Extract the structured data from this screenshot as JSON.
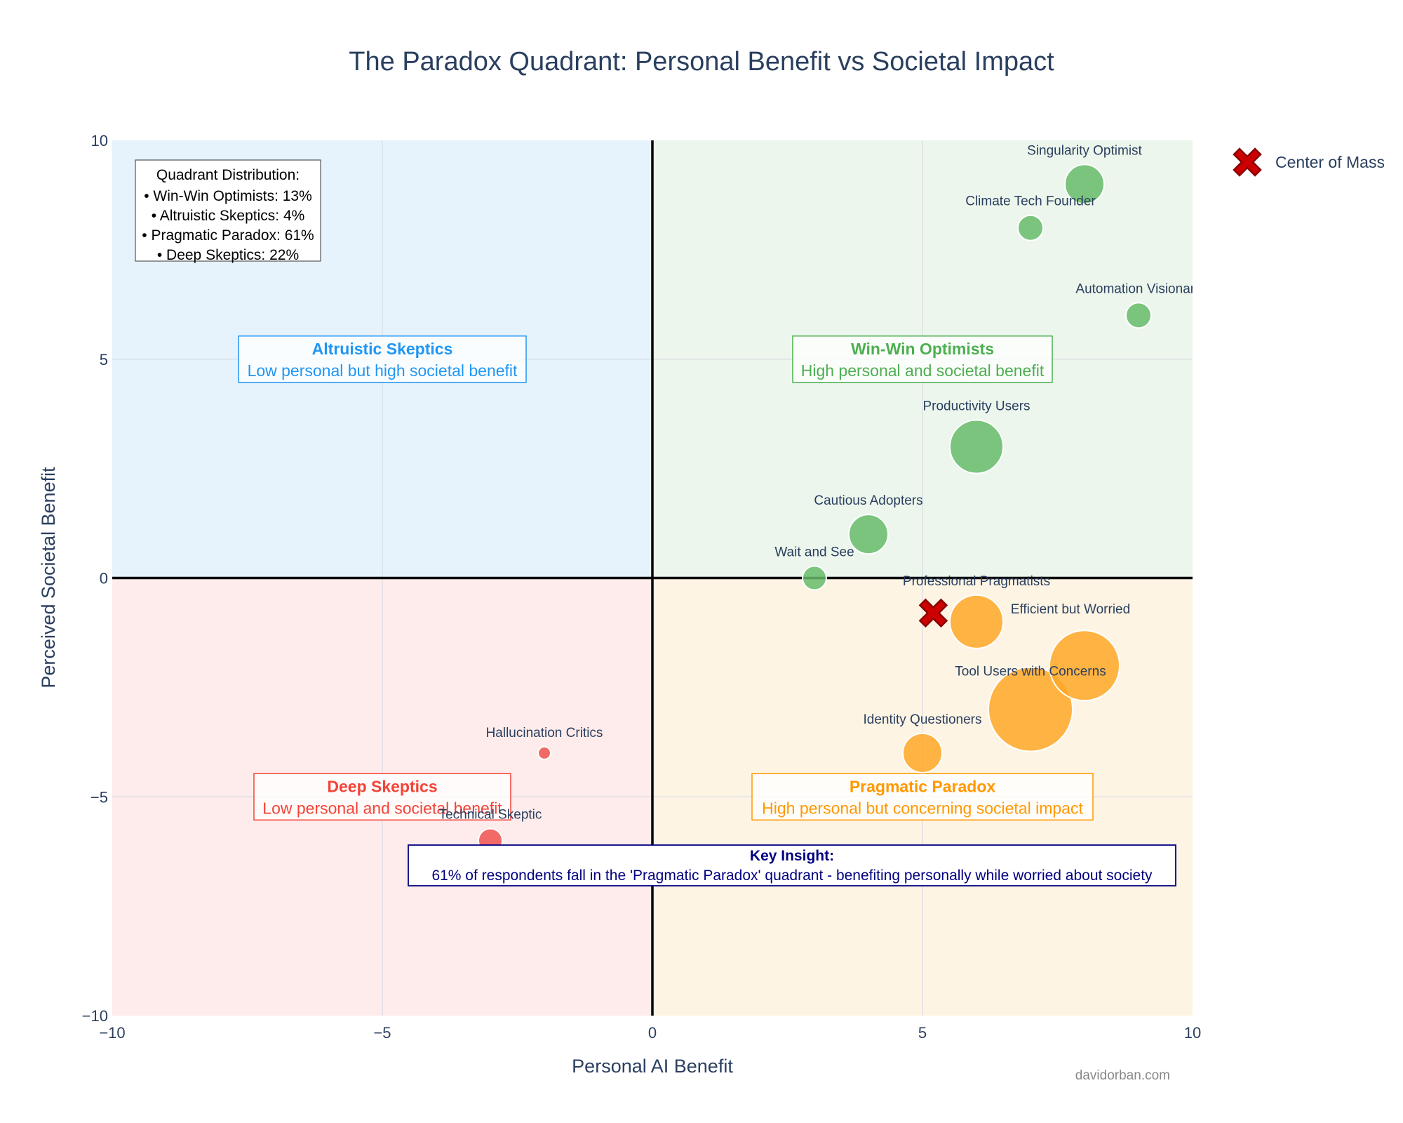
{
  "chart_data": {
    "type": "scatter",
    "title": "The Paradox Quadrant: Personal Benefit vs Societal Impact",
    "xlabel": "Personal AI Benefit",
    "ylabel": "Perceived Societal Benefit",
    "xlim": [
      -10,
      10
    ],
    "ylim": [
      -10,
      10
    ],
    "xticks": [
      -10,
      -5,
      0,
      5,
      10
    ],
    "yticks": [
      -10,
      -5,
      0,
      5,
      10
    ],
    "xtick_labels": [
      "−10",
      "−5",
      "0",
      "5",
      "10"
    ],
    "ytick_labels": [
      "−10",
      "−5",
      "0",
      "5",
      "10"
    ],
    "grid": true,
    "quadrant_colors": {
      "top_left": "#e6f3fc",
      "top_right": "#ecf6ec",
      "bottom_left": "#fdeceb",
      "bottom_right": "#fef4e4"
    },
    "points": [
      {
        "label": "Singularity Optimist",
        "x": 8,
        "y": 9,
        "size": 28,
        "color": "#66bb6a"
      },
      {
        "label": "Climate Tech Founder",
        "x": 7,
        "y": 8,
        "size": 18,
        "color": "#66bb6a"
      },
      {
        "label": "Automation Visionary",
        "x": 9,
        "y": 6,
        "size": 18,
        "color": "#66bb6a"
      },
      {
        "label": "Productivity Users",
        "x": 6,
        "y": 3,
        "size": 38,
        "color": "#66bb6a"
      },
      {
        "label": "Cautious Adopters",
        "x": 4,
        "y": 1,
        "size": 28,
        "color": "#66bb6a"
      },
      {
        "label": "Wait and See",
        "x": 3,
        "y": 0,
        "size": 17,
        "color": "#66bb6a"
      },
      {
        "label": "Professional Pragmatists",
        "x": 6,
        "y": -1,
        "size": 38,
        "color": "#ffa726"
      },
      {
        "label": "Efficient but Worried",
        "x": 8,
        "y": -2,
        "size": 50,
        "color": "#ffa726"
      },
      {
        "label": "Tool Users with Concerns",
        "x": 7,
        "y": -3,
        "size": 60,
        "color": "#ffa726"
      },
      {
        "label": "Identity Questioners",
        "x": 5,
        "y": -4,
        "size": 28,
        "color": "#ffa726"
      },
      {
        "label": "Hallucination Critics",
        "x": -2,
        "y": -4,
        "size": 9,
        "color": "#ef5350"
      },
      {
        "label": "Technical Skeptic",
        "x": -3,
        "y": -6,
        "size": 17,
        "color": "#ef5350"
      }
    ],
    "center_of_mass": {
      "label": "Center of Mass",
      "x": 5.2,
      "y": -0.8,
      "color": "#cc0000"
    },
    "quadrant_labels": [
      {
        "title": "Altruistic Skeptics",
        "subtitle": "Low personal but high societal benefit",
        "x": -5,
        "y": 5,
        "color": "#2196f3"
      },
      {
        "title": "Win-Win Optimists",
        "subtitle": "High personal and societal benefit",
        "x": 5,
        "y": 5,
        "color": "#4caf50"
      },
      {
        "title": "Deep Skeptics",
        "subtitle": "Low personal and societal benefit",
        "x": -5,
        "y": -5,
        "color": "#f44336"
      },
      {
        "title": "Pragmatic Paradox",
        "subtitle": "High personal but concerning societal impact",
        "x": 5,
        "y": -5,
        "color": "#ff9800"
      }
    ],
    "distribution": {
      "title": "Quadrant Distribution:",
      "lines": [
        "• Win-Win Optimists: 13%",
        "• Altruistic Skeptics: 4%",
        "• Pragmatic Paradox: 61%",
        "• Deep Skeptics: 22%"
      ]
    },
    "insight": {
      "title": "Key Insight:",
      "text": "61% of respondents fall in the 'Pragmatic Paradox' quadrant - benefiting personally while worried about society"
    },
    "legend": {
      "position": "top-right",
      "entries": [
        "Center of Mass"
      ]
    },
    "watermark": "davidorban.com"
  }
}
